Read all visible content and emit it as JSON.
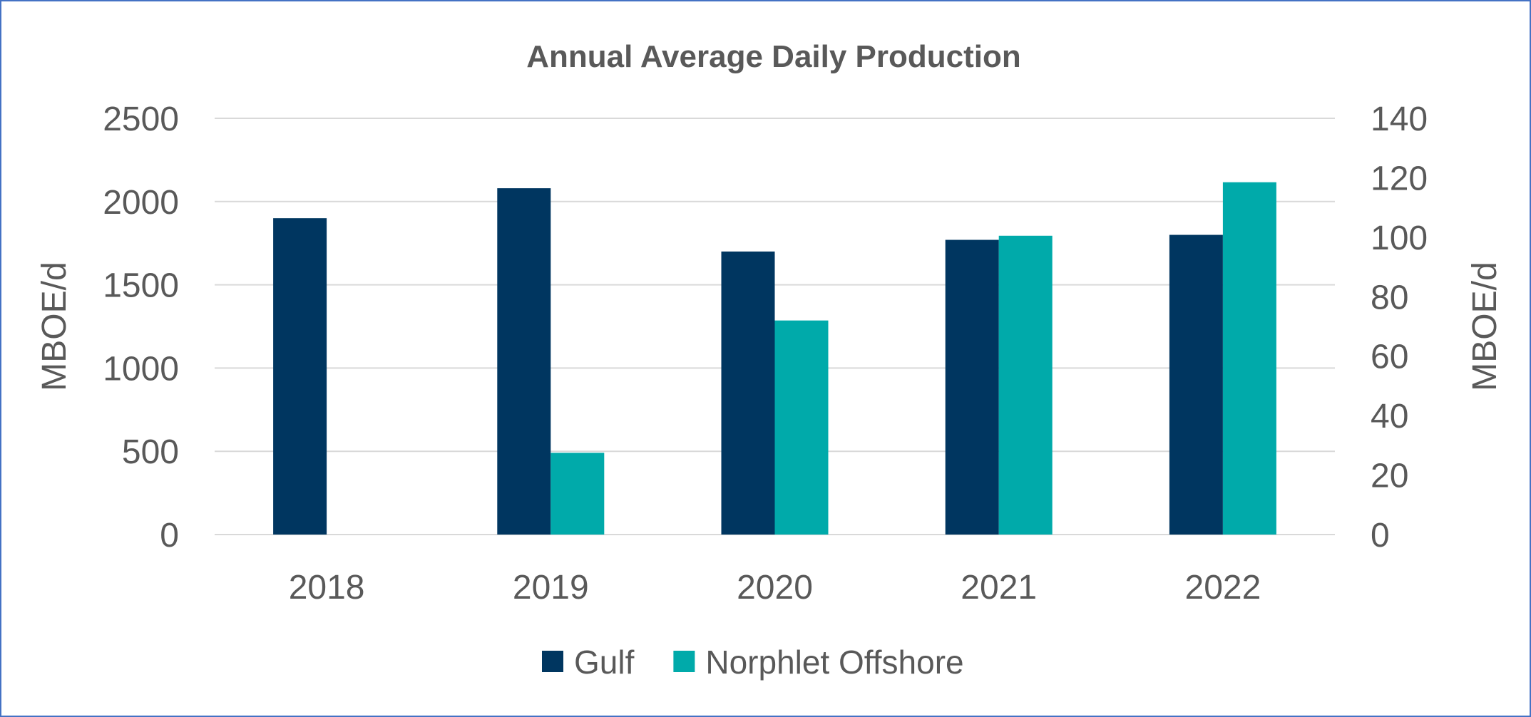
{
  "chart_data": {
    "type": "bar",
    "title": "Annual Average Daily Production",
    "categories": [
      "2018",
      "2019",
      "2020",
      "2021",
      "2022"
    ],
    "ylabel": "MBOE/d",
    "y2label": "MBOE/d",
    "ylim": [
      0,
      2500
    ],
    "y2lim": [
      0,
      140
    ],
    "yticks": [
      0,
      500,
      1000,
      1500,
      2000,
      2500
    ],
    "y2ticks": [
      0,
      20,
      40,
      60,
      80,
      100,
      120,
      140
    ],
    "grid": true,
    "legend_position": "bottom",
    "series": [
      {
        "name": "Gulf",
        "axis": "left",
        "color": "#003660",
        "values": [
          1900,
          2080,
          1700,
          1770,
          1800
        ]
      },
      {
        "name": "Norphlet Offshore",
        "axis": "right",
        "color": "#00AAAA",
        "values": [
          null,
          27.5,
          72,
          100.5,
          118.5
        ]
      }
    ]
  },
  "colors": {
    "border": "#4472C4",
    "grid": "#D9D9D9",
    "text": "#595959"
  }
}
